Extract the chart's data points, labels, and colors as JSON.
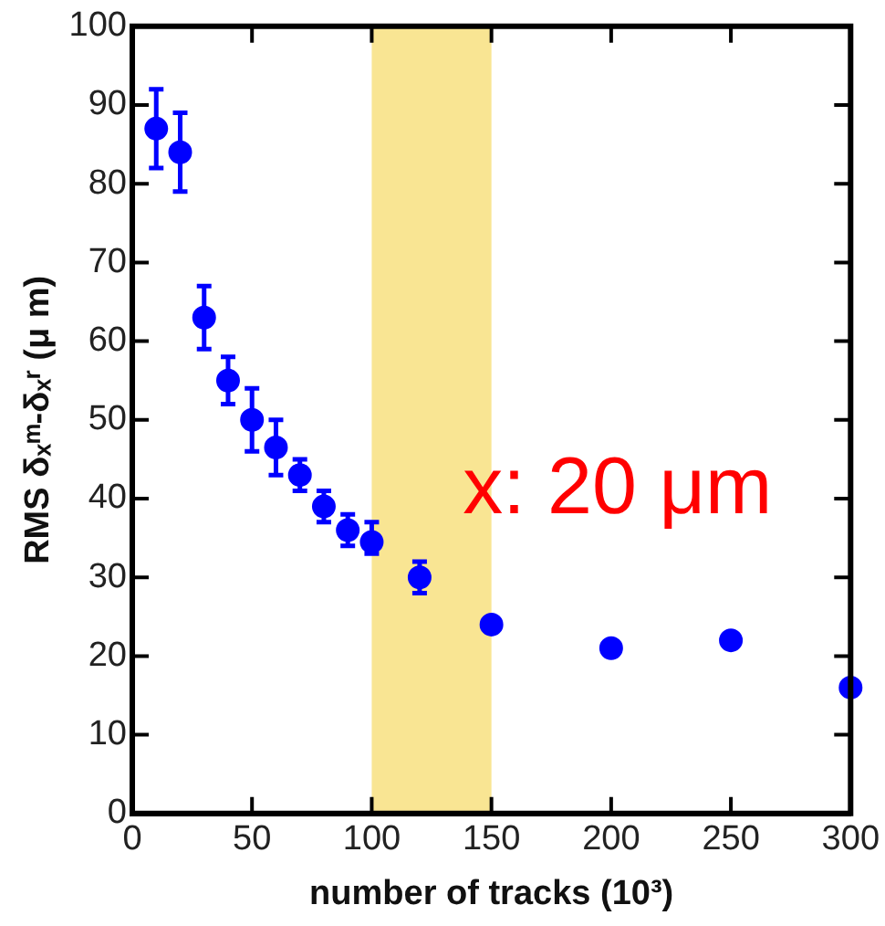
{
  "chart_data": {
    "type": "scatter",
    "xlabel": "number of tracks (10³)",
    "ylabel": "RMS δₓᵐ-δₓʳ (μ m)",
    "x": [
      10,
      20,
      30,
      40,
      50,
      60,
      70,
      80,
      90,
      100,
      120,
      150,
      200,
      250,
      300
    ],
    "series": [
      {
        "color": "#0000ff",
        "values": [
          87,
          84,
          63,
          55,
          50,
          46.5,
          43,
          39,
          36,
          34.5,
          30,
          24,
          21,
          22,
          16
        ],
        "errors": [
          [
            82,
            92
          ],
          [
            79,
            89
          ],
          [
            59,
            67
          ],
          [
            52,
            58
          ],
          [
            46,
            54
          ],
          [
            43,
            50
          ],
          [
            41,
            45
          ],
          [
            37,
            41
          ],
          [
            34,
            38
          ],
          [
            33,
            37
          ],
          [
            28,
            32
          ],
          null,
          null,
          null,
          null
        ]
      }
    ],
    "xlim": [
      0,
      300
    ],
    "xticks": [
      0,
      50,
      100,
      150,
      200,
      250,
      300
    ],
    "ylim": [
      0,
      100
    ],
    "yticks": [
      0,
      10,
      20,
      30,
      40,
      50,
      60,
      70,
      80,
      90,
      100
    ],
    "bands": [
      {
        "axis": "x",
        "from": 100,
        "to": 150,
        "color": "#f7dc6f"
      }
    ],
    "annotations": [
      "x: 20 μm"
    ],
    "marker": "circle",
    "grid": false,
    "legend": false
  }
}
